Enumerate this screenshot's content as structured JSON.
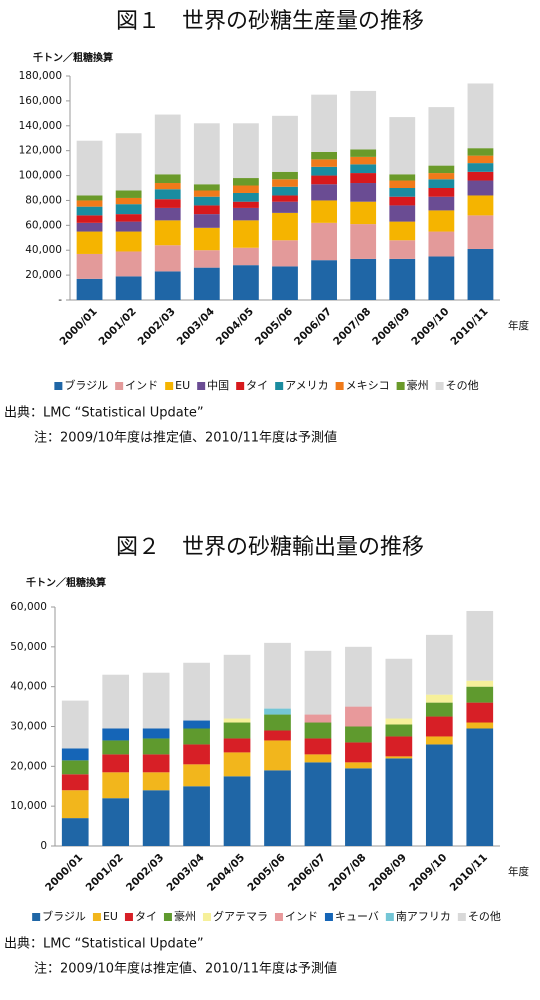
{
  "chart_data": [
    {
      "type": "stacked-bar",
      "title": "図１　世界の砂糖生産量の推移",
      "y_label": "千トン／粗糖換算",
      "x_label": "年度",
      "categories": [
        "2000/01",
        "2001/02",
        "2002/03",
        "2003/04",
        "2004/05",
        "2005/06",
        "2006/07",
        "2007/08",
        "2008/09",
        "2009/10",
        "2010/11"
      ],
      "series": [
        {
          "name": "ブラジル",
          "color": "#1f66a6",
          "values": [
            17000,
            19000,
            23000,
            26000,
            28000,
            27000,
            32000,
            33000,
            33000,
            35000,
            41000
          ]
        },
        {
          "name": "インド",
          "color": "#e39a9a",
          "values": [
            20000,
            20000,
            21000,
            14000,
            14000,
            21000,
            30000,
            28000,
            15000,
            20000,
            27000
          ]
        },
        {
          "name": "EU",
          "color": "#f5b400",
          "values": [
            18000,
            16000,
            20000,
            18000,
            22000,
            22000,
            18000,
            18000,
            15000,
            17000,
            16000
          ]
        },
        {
          "name": "中国",
          "color": "#6a4c93",
          "values": [
            7000,
            8000,
            10000,
            11000,
            10000,
            9000,
            13000,
            15000,
            13000,
            11000,
            12000
          ]
        },
        {
          "name": "タイ",
          "color": "#d7191c",
          "values": [
            6000,
            6000,
            7000,
            7000,
            5000,
            5000,
            7000,
            8000,
            7000,
            7000,
            7000
          ]
        },
        {
          "name": "アメリカ",
          "color": "#1a8ca0",
          "values": [
            7000,
            8000,
            8000,
            7000,
            7000,
            7000,
            7000,
            7000,
            7000,
            7000,
            7000
          ]
        },
        {
          "name": "メキシコ",
          "color": "#f07a1a",
          "values": [
            5000,
            5000,
            5000,
            5000,
            6000,
            6000,
            6000,
            6000,
            6000,
            5000,
            6000
          ]
        },
        {
          "name": "豪州",
          "color": "#6a9a2a",
          "values": [
            4000,
            6000,
            7000,
            5000,
            6000,
            6000,
            6000,
            6000,
            5000,
            6000,
            6000
          ]
        },
        {
          "name": "その他",
          "color": "#d9d9d9",
          "values": [
            44000,
            46000,
            48000,
            49000,
            44000,
            45000,
            46000,
            47000,
            46000,
            47000,
            52000
          ]
        }
      ],
      "ylim": [
        0,
        180000
      ],
      "yticks": [
        {
          "value": 0,
          "label": "-"
        },
        {
          "value": 20000,
          "label": "20,000"
        },
        {
          "value": 40000,
          "label": "40,000"
        },
        {
          "value": 60000,
          "label": "60,000"
        },
        {
          "value": 80000,
          "label": "80,000"
        },
        {
          "value": 100000,
          "label": "100,000"
        },
        {
          "value": 120000,
          "label": "120,000"
        },
        {
          "value": 140000,
          "label": "140,000"
        },
        {
          "value": 160000,
          "label": "160,000"
        },
        {
          "value": 180000,
          "label": "180,000"
        }
      ],
      "grid": false,
      "legend": "bottom",
      "source": "出典：LMC “Statistical Update”",
      "note": "注：2009/10年度は推定値、2010/11年度は予測値"
    },
    {
      "type": "stacked-bar",
      "title": "図２　世界の砂糖輸出量の推移",
      "y_label": "千トン／粗糖換算",
      "x_label": "年度",
      "categories": [
        "2000/01",
        "2001/02",
        "2002/03",
        "2003/04",
        "2004/05",
        "2005/06",
        "2006/07",
        "2007/08",
        "2008/09",
        "2009/10",
        "2010/11"
      ],
      "series": [
        {
          "name": "ブラジル",
          "color": "#1f66a6",
          "values": [
            7000,
            12000,
            14000,
            15000,
            17500,
            19000,
            21000,
            19500,
            22000,
            25500,
            29500
          ]
        },
        {
          "name": "EU",
          "color": "#f2b61c",
          "values": [
            7000,
            6500,
            4500,
            5500,
            6000,
            7500,
            2000,
            1500,
            500,
            2000,
            1500
          ]
        },
        {
          "name": "タイ",
          "color": "#d71f26",
          "values": [
            4000,
            4500,
            4500,
            5000,
            3500,
            2500,
            4000,
            5000,
            5000,
            5000,
            5000
          ]
        },
        {
          "name": "豪州",
          "color": "#5f9a2e",
          "values": [
            3500,
            3500,
            4000,
            4000,
            4000,
            4000,
            4000,
            4000,
            3000,
            3500,
            4000
          ]
        },
        {
          "name": "グアテマラ",
          "color": "#f6f09a",
          "values": [
            0,
            0,
            0,
            0,
            1000,
            0,
            0,
            0,
            1500,
            2000,
            1500
          ]
        },
        {
          "name": "インド",
          "color": "#e8999b",
          "values": [
            0,
            0,
            0,
            0,
            0,
            0,
            2000,
            5000,
            0,
            0,
            0
          ]
        },
        {
          "name": "キューバ",
          "color": "#1565b7",
          "values": [
            3000,
            3000,
            2500,
            2000,
            0,
            0,
            0,
            0,
            0,
            0,
            0
          ]
        },
        {
          "name": "南アフリカ",
          "color": "#74c6d6",
          "values": [
            0,
            0,
            0,
            0,
            0,
            1500,
            0,
            0,
            0,
            0,
            0
          ]
        },
        {
          "name": "その他",
          "color": "#d9d9d9",
          "values": [
            12000,
            13500,
            14000,
            14500,
            16000,
            16500,
            16000,
            15000,
            15000,
            15000,
            17500
          ]
        }
      ],
      "ylim": [
        0,
        60000
      ],
      "yticks": [
        0,
        {
          "value": 10000,
          "label": "10,000"
        },
        {
          "value": 20000,
          "label": "20,000"
        },
        {
          "value": 30000,
          "label": "30,000"
        },
        {
          "value": 40000,
          "label": "40,000"
        },
        {
          "value": 50000,
          "label": "50,000"
        },
        {
          "value": 60000,
          "label": "60,000"
        }
      ],
      "grid": false,
      "legend": "bottom",
      "source": "出典：LMC “Statistical Update”",
      "note": "注：2009/10年度は推定値、2010/11年度は予測値"
    }
  ]
}
